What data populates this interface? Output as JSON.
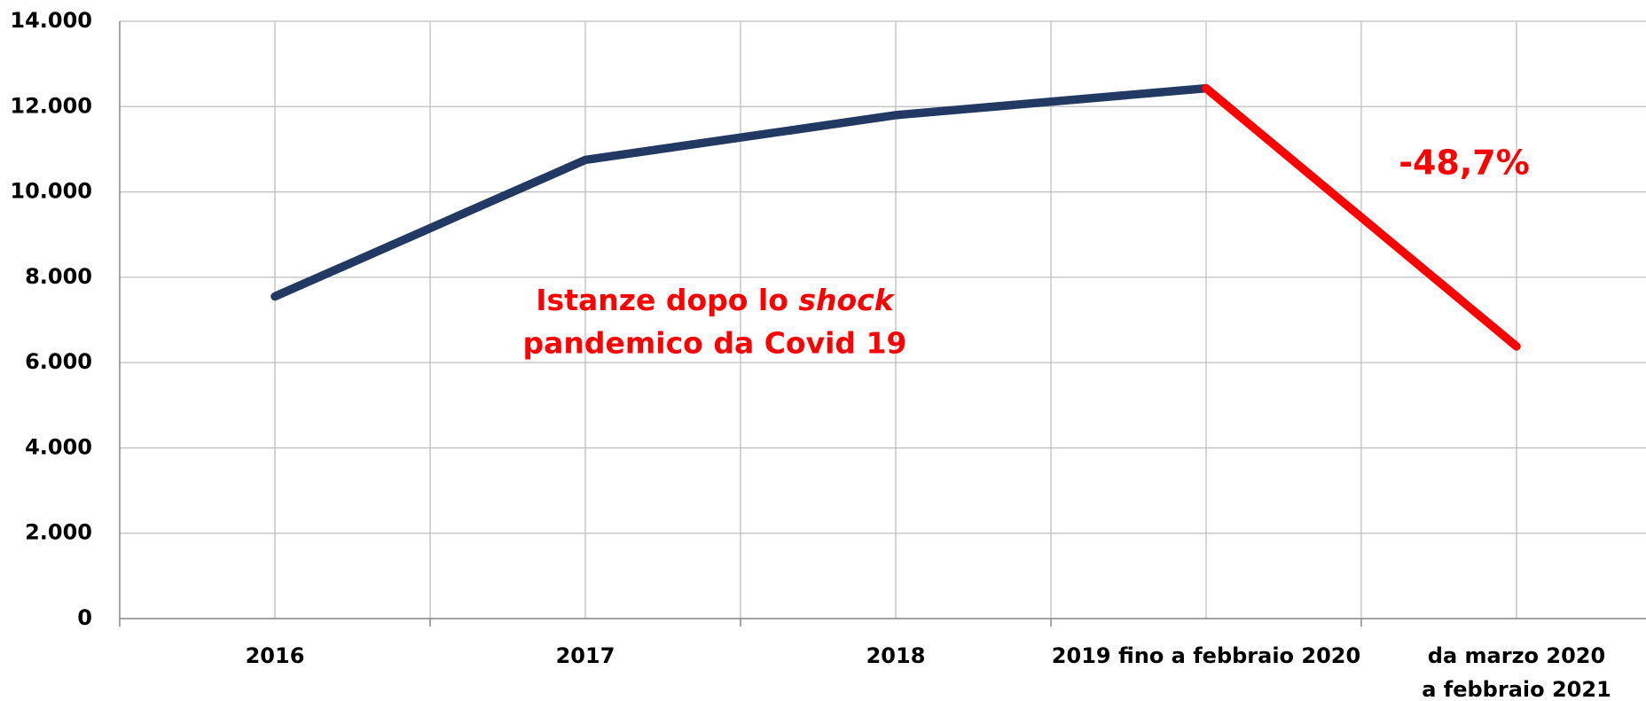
{
  "chart_data": {
    "type": "line",
    "categories": [
      "2016",
      "2017",
      "2018",
      "2019 fino a febbraio 2020",
      [
        "da marzo 2020",
        "a febbraio 2021"
      ]
    ],
    "series": [
      {
        "color": "#223a63",
        "values": [
          7550,
          10750,
          11800,
          12430,
          null
        ]
      },
      {
        "color": "#ff0000",
        "values": [
          null,
          null,
          null,
          12430,
          6380
        ]
      }
    ],
    "ylim": [
      0,
      14000
    ],
    "yticks": [
      0,
      {
        "value": 2000,
        "label": "2.000"
      },
      {
        "value": 4000,
        "label": "4.000"
      },
      {
        "value": 6000,
        "label": "6.000"
      },
      {
        "value": 8000,
        "label": "8.000"
      },
      {
        "value": 10000,
        "label": "10.000"
      },
      {
        "value": 12000,
        "label": "12.000"
      },
      {
        "value": 14000,
        "label": "14.000"
      }
    ],
    "grid": true,
    "annotations": [
      {
        "text": "-48,7%",
        "color": "#ff0000"
      },
      {
        "parts": [
          "Istanze dopo lo ",
          "shock",
          "pandemico da Covid 19"
        ],
        "color": "#ff0000"
      }
    ]
  }
}
